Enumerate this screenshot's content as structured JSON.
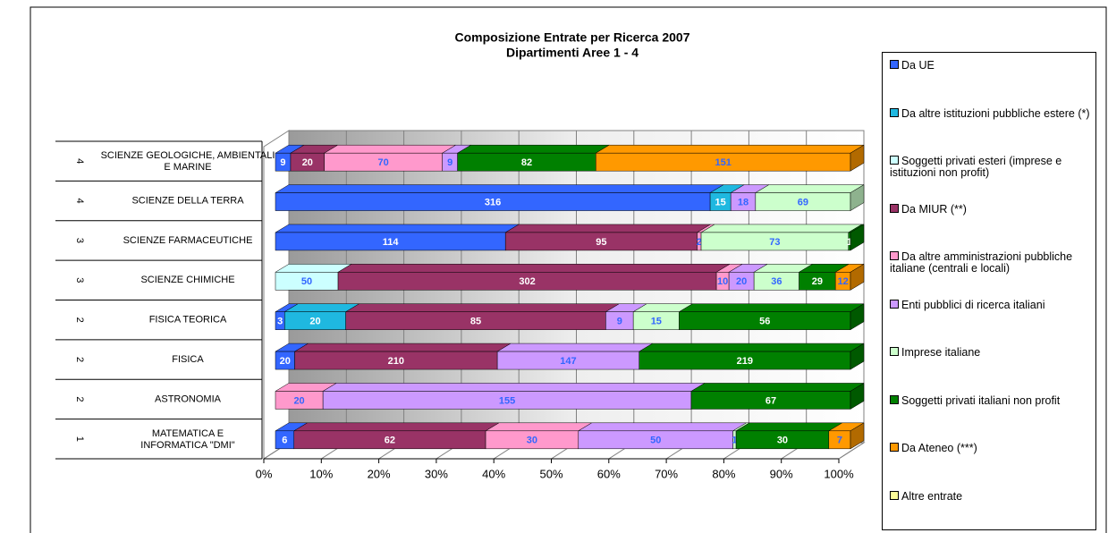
{
  "chart_data": {
    "type": "stacked_bar_100",
    "title": "Composizione Entrate per Ricerca 2007",
    "subtitle": "Dipartimenti Aree 1 - 4",
    "category_groups": [
      "4",
      "4",
      "3",
      "3",
      "2",
      "2",
      "2",
      "1"
    ],
    "categories": [
      "SCIENZE GEOLOGICHE, AMBIENTALI E MARINE",
      "SCIENZE DELLA TERRA",
      "SCIENZE FARMACEUTICHE",
      "SCIENZE CHIMICHE",
      "FISICA TEORICA",
      "FISICA",
      "ASTRONOMIA",
      "MATEMATICA E INFORMATICA \"DMI\""
    ],
    "series": [
      {
        "name": "Da UE",
        "color": "#3366ff",
        "values": [
          9,
          316,
          114,
          null,
          3,
          20,
          null,
          6
        ]
      },
      {
        "name": "Da altre istituzioni pubbliche estere (*)",
        "color": "#1fb8e0",
        "values": [
          null,
          15,
          null,
          null,
          20,
          null,
          null,
          null
        ]
      },
      {
        "name": "Soggetti privati esteri (imprese e istituzioni non profit)",
        "color": "#ccffff",
        "values": [
          null,
          null,
          null,
          50,
          null,
          null,
          null,
          null
        ]
      },
      {
        "name": "Da MIUR (**)",
        "color": "#993366",
        "values": [
          20,
          null,
          95,
          302,
          85,
          210,
          null,
          62
        ]
      },
      {
        "name": "Da altre amministrazioni pubbliche italiane (centrali e locali)",
        "color": "#ff99cc",
        "values": [
          70,
          null,
          2,
          10,
          null,
          null,
          20,
          30
        ]
      },
      {
        "name": "Enti pubblici di ricerca italiani",
        "color": "#cc99ff",
        "values": [
          9,
          18,
          null,
          20,
          9,
          147,
          155,
          50
        ]
      },
      {
        "name": "Imprese italiane",
        "color": "#ccffcc",
        "values": [
          null,
          69,
          73,
          36,
          15,
          null,
          null,
          1
        ]
      },
      {
        "name": "Soggetti privati italiani non profit",
        "color": "#008000",
        "values": [
          82,
          null,
          1,
          29,
          56,
          219,
          67,
          30
        ]
      },
      {
        "name": "Da Ateneo (***)",
        "color": "#ff9900",
        "values": [
          151,
          null,
          null,
          12,
          null,
          null,
          null,
          7
        ]
      },
      {
        "name": "Altre entrate",
        "color": "#ffff99",
        "values": [
          null,
          null,
          null,
          null,
          null,
          null,
          null,
          null
        ]
      }
    ],
    "xlim": [
      0,
      100
    ],
    "xticks": [
      {
        "value": 0,
        "label": "0%"
      },
      {
        "value": 10,
        "label": "10%"
      },
      {
        "value": 20,
        "label": "20%"
      },
      {
        "value": 30,
        "label": "30%"
      },
      {
        "value": 40,
        "label": "40%"
      },
      {
        "value": 50,
        "label": "50%"
      },
      {
        "value": 60,
        "label": "60%"
      },
      {
        "value": 70,
        "label": "70%"
      },
      {
        "value": 80,
        "label": "80%"
      },
      {
        "value": 90,
        "label": "90%"
      },
      {
        "value": 100,
        "label": "100%"
      }
    ],
    "grid": true
  }
}
